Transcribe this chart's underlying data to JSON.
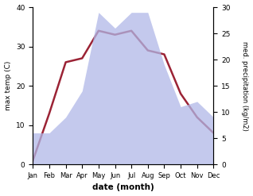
{
  "months": [
    "Jan",
    "Feb",
    "Mar",
    "Apr",
    "May",
    "Jun",
    "Jul",
    "Aug",
    "Sep",
    "Oct",
    "Nov",
    "Dec"
  ],
  "temperature": [
    1,
    13,
    26,
    27,
    34,
    33,
    34,
    29,
    28,
    18,
    12,
    8
  ],
  "precipitation": [
    6,
    6,
    9,
    14,
    29,
    26,
    29,
    29,
    19,
    11,
    12,
    9
  ],
  "temp_color": "#9b2335",
  "precip_color_fill": "#b0b8e8",
  "left_ylim": [
    0,
    40
  ],
  "right_ylim": [
    0,
    30
  ],
  "left_yticks": [
    0,
    10,
    20,
    30,
    40
  ],
  "right_yticks": [
    0,
    5,
    10,
    15,
    20,
    25,
    30
  ],
  "xlabel": "date (month)",
  "ylabel_left": "max temp (C)",
  "ylabel_right": "med. precipitation (kg/m2)",
  "temp_linewidth": 1.8,
  "background_color": "#ffffff"
}
